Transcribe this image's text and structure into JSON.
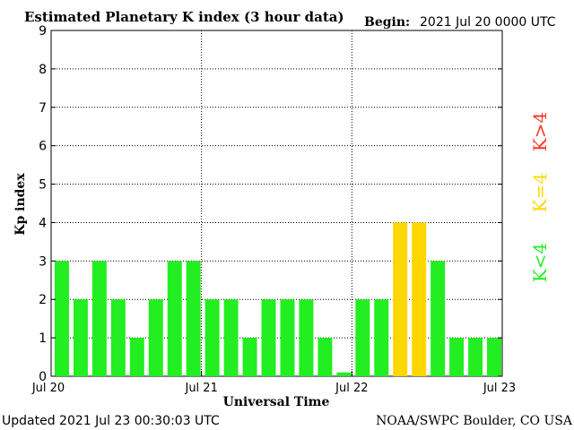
{
  "chart_data": {
    "type": "bar",
    "title": "Estimated Planetary K index (3 hour data)",
    "begin_label": "Begin:",
    "begin_value": "2021 Jul 20 0000 UTC",
    "xlabel": "Universal Time",
    "ylabel": "Kp index",
    "ylim": [
      0,
      9
    ],
    "yticks": [
      0,
      1,
      2,
      3,
      4,
      5,
      6,
      7,
      8,
      9
    ],
    "x_tick_labels": [
      "Jul 20",
      "Jul 21",
      "Jul 22",
      "Jul 23"
    ],
    "grid": true,
    "values": [
      3,
      2,
      3,
      2,
      1,
      2,
      3,
      3,
      2,
      2,
      1,
      2,
      2,
      2,
      1,
      0.1,
      2,
      2,
      4,
      4,
      3,
      1,
      1,
      1
    ],
    "legend": [
      {
        "label": "K<4",
        "color": "#22ee22"
      },
      {
        "label": "K=4",
        "color": "#ffd700"
      },
      {
        "label": "K>4",
        "color": "#ff3322"
      }
    ]
  },
  "footer": {
    "updated": "Updated 2021 Jul 23 00:30:03 UTC",
    "source": "NOAA/SWPC Boulder, CO USA"
  }
}
